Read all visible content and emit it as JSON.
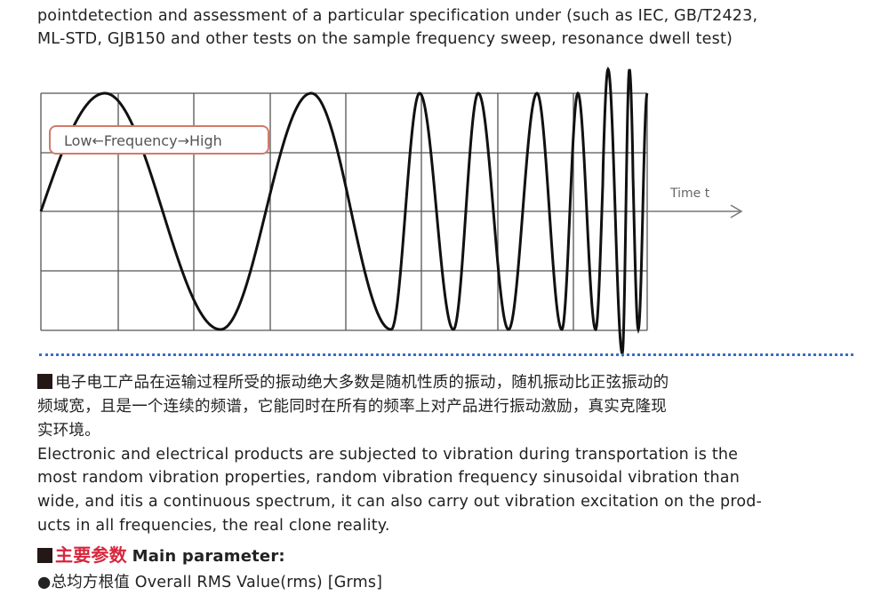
{
  "intro": {
    "line1": "pointdetection and assessment of a particular specification under (such as IEC, GB/T2423,",
    "line2": "ML-STD, GJB150 and other tests on the sample frequency sweep, resonance dwell test)"
  },
  "figure": {
    "label": "Low←Frequency→High",
    "axis": "Time t"
  },
  "random": {
    "cn1": "电子电工产品在运输过程所受的振动绝大多数是随机性质的振动，随机振动比正弦振动的",
    "cn2": "频域宽，且是一个连续的频谱，它能同时在所有的频率上对产品进行振动激励，真实克隆现",
    "cn3": "实环境。",
    "en1": "Electronic and electrical products are subjected to vibration during transportation is the",
    "en2": "most random vibration properties, random vibration frequency sinusoidal vibration than",
    "en3": "wide, and itis a continuous spectrum, it can also carry out vibration excitation on the prod-",
    "en4": "ucts in all frequencies, the real clone reality."
  },
  "params": {
    "title_cn": "主要参数",
    "title_en": "Main parameter:",
    "item1": "●总均方根值 Overall RMS Value(rms) [Grms]"
  },
  "colors": {
    "accent": "#d7263d",
    "dots": "#3a6fc4"
  }
}
